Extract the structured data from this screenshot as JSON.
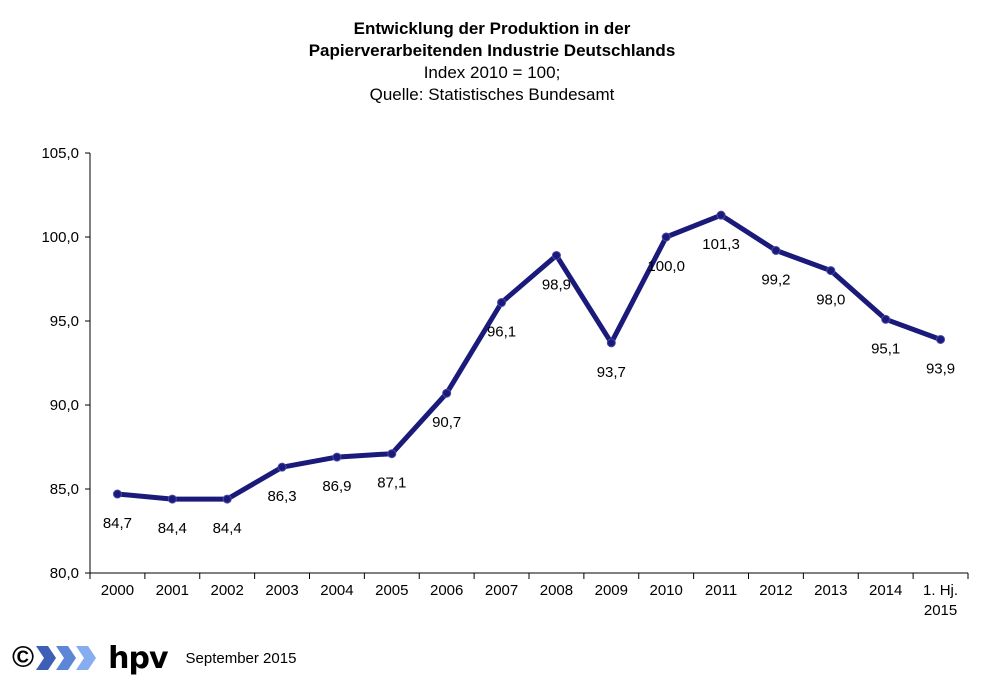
{
  "header": {
    "title_line1": "Entwicklung der Produktion in der",
    "title_line2": "Papierverarbeitenden Industrie Deutschlands",
    "subtitle_line1": "Index 2010 = 100;",
    "subtitle_line2": "Quelle:  Statistisches  Bundesamt"
  },
  "chart_data": {
    "type": "line",
    "title": "Entwicklung der Produktion in der Papierverarbeitenden Industrie Deutschlands",
    "subtitle": "Index 2010 = 100; Quelle: Statistisches Bundesamt",
    "categories": [
      "2000",
      "2001",
      "2002",
      "2003",
      "2004",
      "2005",
      "2006",
      "2007",
      "2008",
      "2009",
      "2010",
      "2011",
      "2012",
      "2013",
      "2014",
      "1. Hj. 2015"
    ],
    "category_lines": [
      [
        "2000"
      ],
      [
        "2001"
      ],
      [
        "2002"
      ],
      [
        "2003"
      ],
      [
        "2004"
      ],
      [
        "2005"
      ],
      [
        "2006"
      ],
      [
        "2007"
      ],
      [
        "2008"
      ],
      [
        "2009"
      ],
      [
        "2010"
      ],
      [
        "2011"
      ],
      [
        "2012"
      ],
      [
        "2013"
      ],
      [
        "2014"
      ],
      [
        "1. Hj.",
        "2015"
      ]
    ],
    "values": [
      84.7,
      84.4,
      84.4,
      86.3,
      86.9,
      87.1,
      90.7,
      96.1,
      98.9,
      93.7,
      100.0,
      101.3,
      99.2,
      98.0,
      95.1,
      93.9
    ],
    "value_labels": [
      "84,7",
      "84,4",
      "84,4",
      "86,3",
      "86,9",
      "87,1",
      "90,7",
      "96,1",
      "98,9",
      "93,7",
      "100,0",
      "101,3",
      "99,2",
      "98,0",
      "95,1",
      "93,9"
    ],
    "yticks": [
      "80,0",
      "85,0",
      "90,0",
      "95,0",
      "100,0",
      "105,0"
    ],
    "ytick_values": [
      80,
      85,
      90,
      95,
      100,
      105
    ],
    "ylim": [
      80,
      105
    ],
    "xlabel": "",
    "ylabel": "",
    "grid": false,
    "legend": "none",
    "line_color": "#1a1a7a"
  },
  "footer": {
    "copyright_symbol": "©",
    "brand": "hpv",
    "date": "September 2015"
  }
}
